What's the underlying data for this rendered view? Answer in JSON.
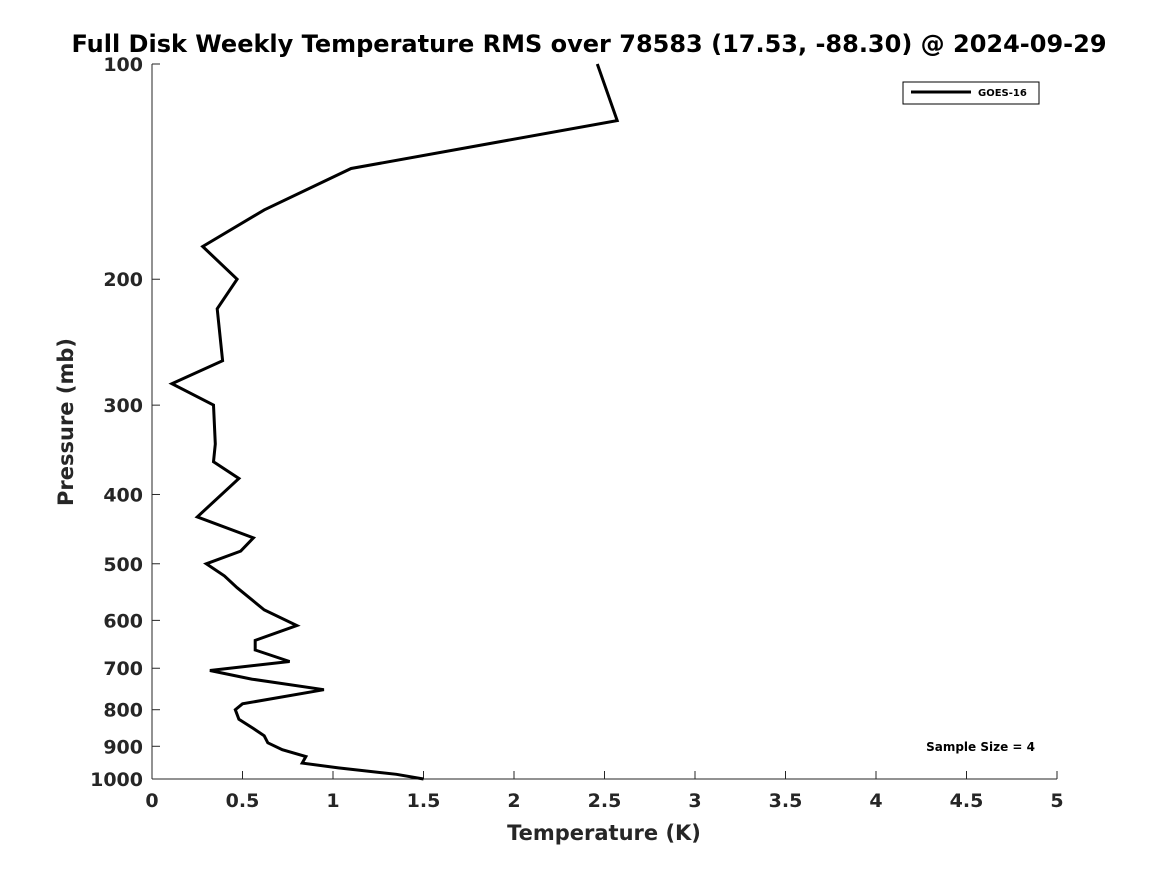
{
  "chart_data": {
    "type": "line",
    "title": "Full Disk Weekly Temperature RMS over 78583 (17.53, -88.30) @ 2024-09-29",
    "xlabel": "Temperature (K)",
    "ylabel": "Pressure (mb)",
    "xlim": [
      0,
      5
    ],
    "ylim": [
      100,
      1000
    ],
    "y_scale": "log",
    "y_reversed": true,
    "x_ticks": [
      0,
      0.5,
      1,
      1.5,
      2,
      2.5,
      3,
      3.5,
      4,
      4.5,
      5
    ],
    "x_tick_labels": [
      "0",
      "0.5",
      "1",
      "1.5",
      "2",
      "2.5",
      "3",
      "3.5",
      "4",
      "4.5",
      "5"
    ],
    "y_ticks": [
      100,
      200,
      300,
      400,
      500,
      600,
      700,
      800,
      900,
      1000
    ],
    "y_tick_labels": [
      "100",
      "200",
      "300",
      "400",
      "500",
      "600",
      "700",
      "800",
      "900",
      "1000"
    ],
    "grid": false,
    "legend_position": "top-right",
    "annotation": "Sample Size = 4",
    "series": [
      {
        "name": "GOES-16",
        "color": "#000000",
        "points": [
          {
            "x": 2.46,
            "y": 100
          },
          {
            "x": 2.57,
            "y": 120
          },
          {
            "x": 1.1,
            "y": 140
          },
          {
            "x": 0.62,
            "y": 160
          },
          {
            "x": 0.28,
            "y": 180
          },
          {
            "x": 0.47,
            "y": 200
          },
          {
            "x": 0.36,
            "y": 220
          },
          {
            "x": 0.39,
            "y": 260
          },
          {
            "x": 0.11,
            "y": 280
          },
          {
            "x": 0.34,
            "y": 300
          },
          {
            "x": 0.35,
            "y": 340
          },
          {
            "x": 0.34,
            "y": 360
          },
          {
            "x": 0.48,
            "y": 380
          },
          {
            "x": 0.25,
            "y": 430
          },
          {
            "x": 0.56,
            "y": 460
          },
          {
            "x": 0.49,
            "y": 480
          },
          {
            "x": 0.3,
            "y": 500
          },
          {
            "x": 0.4,
            "y": 520
          },
          {
            "x": 0.47,
            "y": 540
          },
          {
            "x": 0.62,
            "y": 580
          },
          {
            "x": 0.8,
            "y": 610
          },
          {
            "x": 0.57,
            "y": 640
          },
          {
            "x": 0.57,
            "y": 660
          },
          {
            "x": 0.76,
            "y": 685
          },
          {
            "x": 0.32,
            "y": 705
          },
          {
            "x": 0.55,
            "y": 725
          },
          {
            "x": 0.95,
            "y": 750
          },
          {
            "x": 0.5,
            "y": 785
          },
          {
            "x": 0.46,
            "y": 800
          },
          {
            "x": 0.48,
            "y": 825
          },
          {
            "x": 0.56,
            "y": 850
          },
          {
            "x": 0.62,
            "y": 870
          },
          {
            "x": 0.64,
            "y": 890
          },
          {
            "x": 0.72,
            "y": 910
          },
          {
            "x": 0.85,
            "y": 930
          },
          {
            "x": 0.83,
            "y": 950
          },
          {
            "x": 1.03,
            "y": 965
          },
          {
            "x": 1.35,
            "y": 985
          },
          {
            "x": 1.5,
            "y": 1000
          }
        ]
      }
    ]
  }
}
